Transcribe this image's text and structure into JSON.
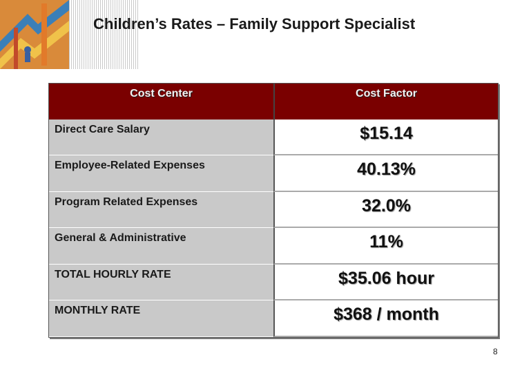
{
  "slide": {
    "title": "Children’s Rates – Family Support Specialist",
    "page_number": "8"
  },
  "table": {
    "headers": [
      "Cost Center",
      "Cost Factor"
    ],
    "rows": [
      {
        "label": "Direct Care Salary",
        "value": "$15.14"
      },
      {
        "label": "Employee-Related Expenses",
        "value": "40.13%"
      },
      {
        "label": "Program Related Expenses",
        "value": "32.0%"
      },
      {
        "label": "General & Administrative",
        "value": "11%"
      },
      {
        "label": "TOTAL HOURLY RATE",
        "value": "$35.06 hour"
      },
      {
        "label": "MONTHLY RATE",
        "value": "$368 / month"
      }
    ]
  },
  "colors": {
    "header_bg": "#7a0000",
    "left_cell_bg": "#c9c9c9"
  }
}
